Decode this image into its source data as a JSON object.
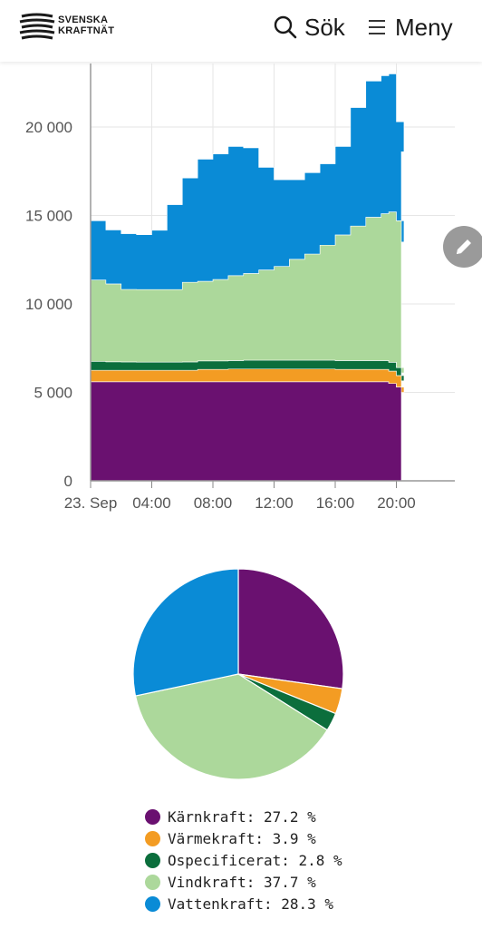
{
  "header": {
    "logo_line1": "SVENSKA",
    "logo_line2": "KRAFTNÄT",
    "search_label": "Sök",
    "menu_label": "Meny",
    "search_icon": "search-icon",
    "menu_icon": "hamburger-menu-icon",
    "edit_icon": "pencil-icon"
  },
  "colors": {
    "Kärnkraft": "#6a1170",
    "Värmekraft": "#f39c23",
    "Ospecificerat": "#0b6e3c",
    "Vindkraft": "#acd89b",
    "Vattenkraft": "#0a8bd6"
  },
  "chart_data": [
    {
      "type": "area",
      "stacked": true,
      "step": true,
      "x": [
        "00:00",
        "01:00",
        "02:00",
        "03:00",
        "04:00",
        "05:00",
        "06:00",
        "07:00",
        "08:00",
        "09:00",
        "10:00",
        "11:00",
        "12:00",
        "13:00",
        "14:00",
        "15:00",
        "16:00",
        "17:00",
        "18:00",
        "19:00",
        "19:30",
        "20:00",
        "20:30"
      ],
      "xticks": [
        "23. Sep",
        "04:00",
        "08:00",
        "12:00",
        "16:00",
        "20:00"
      ],
      "yticks": [
        "0",
        "5 000",
        "10 000",
        "15 000",
        "20 000"
      ],
      "ylim": [
        0,
        23000
      ],
      "grid": true,
      "series": [
        {
          "name": "Kärnkraft",
          "values": [
            5600,
            5600,
            5600,
            5600,
            5600,
            5600,
            5600,
            5600,
            5600,
            5600,
            5600,
            5600,
            5600,
            5600,
            5600,
            5600,
            5600,
            5600,
            5600,
            5600,
            5500,
            5300,
            5000
          ]
        },
        {
          "name": "Värmekraft",
          "values": [
            650,
            650,
            650,
            650,
            650,
            650,
            650,
            700,
            700,
            720,
            720,
            720,
            720,
            720,
            720,
            720,
            700,
            700,
            700,
            700,
            700,
            650,
            650
          ]
        },
        {
          "name": "Ospecificerat",
          "values": [
            500,
            480,
            470,
            460,
            460,
            460,
            470,
            480,
            480,
            480,
            500,
            500,
            500,
            500,
            500,
            500,
            500,
            500,
            500,
            500,
            500,
            450,
            450
          ]
        },
        {
          "name": "Vindkraft",
          "values": [
            4600,
            4400,
            4100,
            4100,
            4100,
            4100,
            4500,
            4500,
            4600,
            4800,
            4900,
            5100,
            5300,
            5700,
            6000,
            6500,
            7100,
            7600,
            8100,
            8300,
            8500,
            8300,
            7400
          ]
        },
        {
          "name": "Vattenkraft",
          "values": [
            3350,
            3050,
            3150,
            3100,
            3350,
            4800,
            5900,
            6900,
            7100,
            7300,
            7100,
            5800,
            4900,
            4500,
            4600,
            4600,
            5000,
            6700,
            7700,
            7800,
            7800,
            5600,
            5100
          ]
        }
      ]
    },
    {
      "type": "pie",
      "labels": [
        "Kärnkraft",
        "Värmekraft",
        "Ospecificerat",
        "Vindkraft",
        "Vattenkraft"
      ],
      "values": [
        27.2,
        3.9,
        2.8,
        37.7,
        28.3
      ],
      "legend": [
        "Kärnkraft: 27.2 %",
        "Värmekraft: 3.9 %",
        "Ospecificerat: 2.8 %",
        "Vindkraft: 37.7 %",
        "Vattenkraft: 28.3 %"
      ]
    }
  ]
}
